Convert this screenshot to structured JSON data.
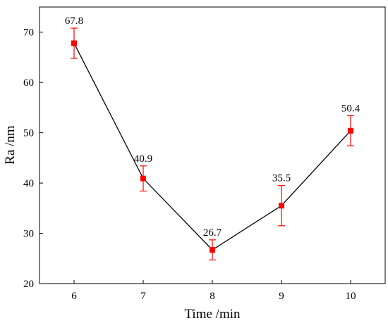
{
  "chart_data": {
    "type": "line",
    "xlabel": "Time /min",
    "ylabel": "Ra /nm",
    "x": [
      6,
      7,
      8,
      9,
      10
    ],
    "xticks": [
      "6",
      "7",
      "8",
      "9",
      "10"
    ],
    "xlim": [
      5.5,
      10.5
    ],
    "ylim": [
      20,
      75
    ],
    "yticks": [
      "20",
      "30",
      "40",
      "50",
      "60",
      "70"
    ],
    "series": [
      {
        "values": [
          67.8,
          40.9,
          26.7,
          35.5,
          50.4
        ],
        "error_low": [
          64.8,
          38.4,
          24.7,
          31.5,
          47.4
        ],
        "error_high": [
          70.8,
          43.4,
          28.7,
          39.5,
          53.4
        ],
        "data_labels": [
          "67.8",
          "40.9",
          "26.7",
          "35.5",
          "50.4"
        ]
      }
    ],
    "line_color": "#000000",
    "marker_color": "#ff0000",
    "grid": false,
    "legend": "none"
  }
}
